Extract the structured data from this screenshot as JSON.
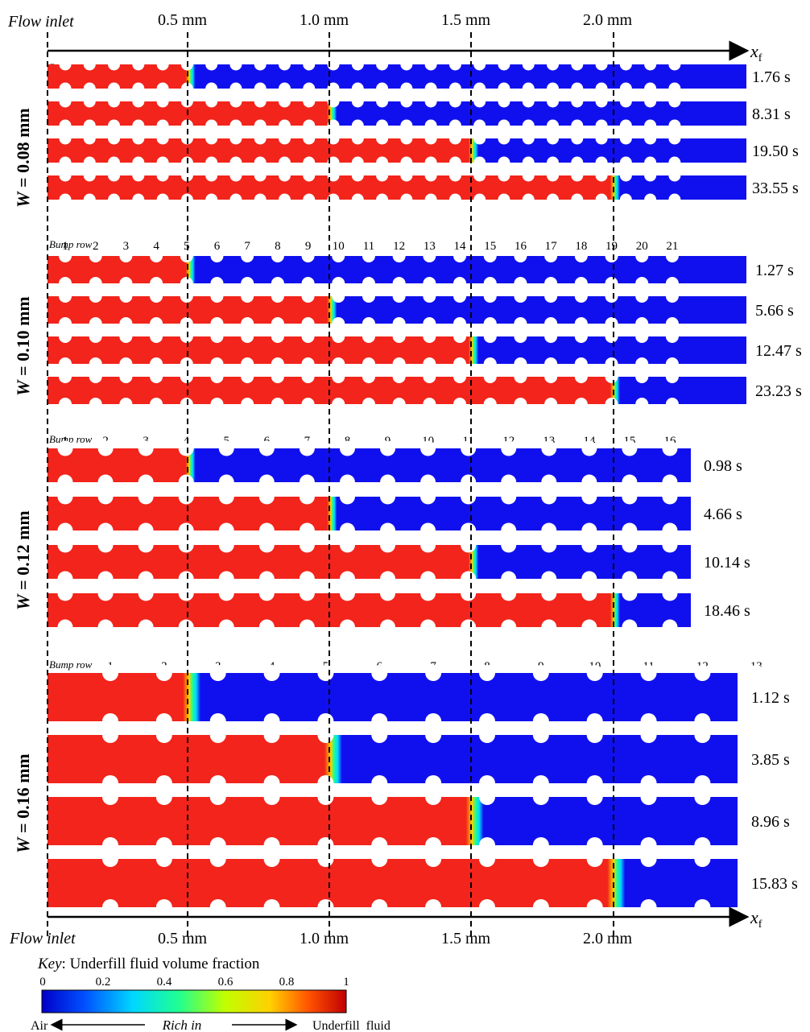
{
  "axis": {
    "top_left_label": "Flow inlet",
    "bottom_left_label": "Flow inlet",
    "arrow_label_main": "x",
    "arrow_label_sub": "f",
    "positions": [
      "0.5 mm",
      "1.0 mm",
      "1.5 mm",
      "2.0 mm"
    ]
  },
  "bump_row_label": "Bump row",
  "panels": [
    {
      "width_label_var": "W",
      "width_label_value": " = 0.08 mm",
      "bump_count": 26,
      "bump_numbers": [
        "1",
        "2",
        "3",
        "4",
        "5",
        "6",
        "7",
        "8",
        "9",
        "10",
        "11",
        "12",
        "13",
        "14",
        "15",
        "16",
        "17",
        "18",
        "19",
        "20",
        "21",
        "22",
        "23",
        "24",
        "25",
        "26"
      ],
      "snapshots": [
        {
          "time": "1.76 s",
          "front_position_mm": 0.5
        },
        {
          "time": "8.31 s",
          "front_position_mm": 1.0
        },
        {
          "time": "19.50 s",
          "front_position_mm": 1.5
        },
        {
          "time": "33.55 s",
          "front_position_mm": 2.0
        }
      ]
    },
    {
      "width_label_var": "W",
      "width_label_value": " = 0.10 mm",
      "bump_count": 21,
      "bump_numbers": [
        "1",
        "2",
        "3",
        "4",
        "5",
        "6",
        "7",
        "8",
        "9",
        "10",
        "11",
        "12",
        "13",
        "14",
        "15",
        "16",
        "17",
        "18",
        "19",
        "20",
        "21"
      ],
      "snapshots": [
        {
          "time": "1.27 s",
          "front_position_mm": 0.5
        },
        {
          "time": "5.66 s",
          "front_position_mm": 1.0
        },
        {
          "time": "12.47 s",
          "front_position_mm": 1.5
        },
        {
          "time": "23.23 s",
          "front_position_mm": 2.0
        }
      ]
    },
    {
      "width_label_var": "W",
      "width_label_value": " = 0.12 mm",
      "bump_count": 16,
      "bump_numbers": [
        "1",
        "2",
        "3",
        "4",
        "5",
        "6",
        "7",
        "8",
        "9",
        "10",
        "11",
        "12",
        "13",
        "14",
        "15",
        "16"
      ],
      "snapshots": [
        {
          "time": "0.98 s",
          "front_position_mm": 0.5
        },
        {
          "time": "4.66 s",
          "front_position_mm": 1.0
        },
        {
          "time": "10.14 s",
          "front_position_mm": 1.5
        },
        {
          "time": "18.46 s",
          "front_position_mm": 2.0
        }
      ]
    },
    {
      "width_label_var": "W",
      "width_label_value": " = 0.16 mm",
      "bump_count": 13,
      "bump_numbers": [
        "1",
        "2",
        "3",
        "4",
        "5",
        "6",
        "7",
        "8",
        "9",
        "10",
        "11",
        "12",
        "13"
      ],
      "snapshots": [
        {
          "time": "1.12 s",
          "front_position_mm": 0.5
        },
        {
          "time": "3.85 s",
          "front_position_mm": 1.0
        },
        {
          "time": "8.96 s",
          "front_position_mm": 1.5
        },
        {
          "time": "15.83 s",
          "front_position_mm": 2.0
        }
      ]
    }
  ],
  "key": {
    "title_italic": "Key",
    "title_rest": ": Underfill fluid volume fraction",
    "ticks": [
      "0",
      "0.2",
      "0.4",
      "0.6",
      "0.8",
      "1"
    ],
    "left_label": "Air",
    "center_label": "Rich in",
    "right_label": "Underfill  fluid"
  },
  "colors": {
    "underfill": "#f2241b",
    "air": "#1010ee",
    "colormap": [
      "#0000c8",
      "#0050ff",
      "#00d8ff",
      "#20ff90",
      "#c0ff00",
      "#ffd000",
      "#ff5000",
      "#c00000"
    ]
  }
}
